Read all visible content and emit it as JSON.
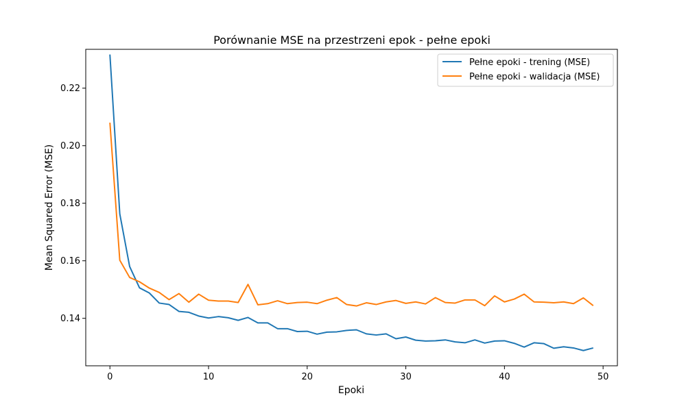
{
  "chart_data": {
    "type": "line",
    "title": "Porównanie MSE na przestrzeni epok - pełne epoki",
    "xlabel": "Epoki",
    "ylabel": "Mean Squared Error (MSE)",
    "xlim": [
      -2.45,
      51.45
    ],
    "ylim": [
      0.1235,
      0.2335
    ],
    "xticks": [
      0,
      10,
      20,
      30,
      40,
      50
    ],
    "yticks": [
      0.14,
      0.16,
      0.18,
      0.2,
      0.22
    ],
    "xtick_labels": [
      "0",
      "10",
      "20",
      "30",
      "40",
      "50"
    ],
    "ytick_labels": [
      "0.14",
      "0.16",
      "0.18",
      "0.20",
      "0.22"
    ],
    "grid": false,
    "legend_position": "top-right",
    "x": [
      0,
      1,
      2,
      3,
      4,
      5,
      6,
      7,
      8,
      9,
      10,
      11,
      12,
      13,
      14,
      15,
      16,
      17,
      18,
      19,
      20,
      21,
      22,
      23,
      24,
      25,
      26,
      27,
      28,
      29,
      30,
      31,
      32,
      33,
      34,
      35,
      36,
      37,
      38,
      39,
      40,
      41,
      42,
      43,
      44,
      45,
      46,
      47,
      48,
      49
    ],
    "series": [
      {
        "name": "Pełne epoki - trening (MSE)",
        "color": "#1f77b4",
        "values": [
          0.2317,
          0.1763,
          0.158,
          0.1506,
          0.1488,
          0.1453,
          0.1448,
          0.1424,
          0.1421,
          0.1408,
          0.1401,
          0.1406,
          0.1402,
          0.1393,
          0.1403,
          0.1384,
          0.1384,
          0.1364,
          0.1364,
          0.1354,
          0.1355,
          0.1345,
          0.1352,
          0.1353,
          0.1358,
          0.136,
          0.1346,
          0.1342,
          0.1346,
          0.1329,
          0.1335,
          0.1324,
          0.1321,
          0.1322,
          0.1325,
          0.1318,
          0.1315,
          0.1325,
          0.1314,
          0.1321,
          0.1322,
          0.1313,
          0.13,
          0.1315,
          0.1312,
          0.1296,
          0.1301,
          0.1297,
          0.1288,
          0.1297
        ]
      },
      {
        "name": "Pełne epoki - walidacja (MSE)",
        "color": "#ff7f0e",
        "values": [
          0.208,
          0.1602,
          0.1542,
          0.1527,
          0.1505,
          0.149,
          0.1465,
          0.1486,
          0.1456,
          0.1484,
          0.1463,
          0.146,
          0.146,
          0.1455,
          0.1518,
          0.1447,
          0.1451,
          0.1461,
          0.1451,
          0.1455,
          0.1456,
          0.1451,
          0.1463,
          0.1472,
          0.1448,
          0.1443,
          0.1454,
          0.1448,
          0.1457,
          0.1462,
          0.1452,
          0.1457,
          0.145,
          0.1472,
          0.1455,
          0.1453,
          0.1464,
          0.1464,
          0.1444,
          0.1478,
          0.1457,
          0.1467,
          0.1484,
          0.1457,
          0.1456,
          0.1454,
          0.1457,
          0.1451,
          0.1471,
          0.1444
        ]
      }
    ]
  }
}
